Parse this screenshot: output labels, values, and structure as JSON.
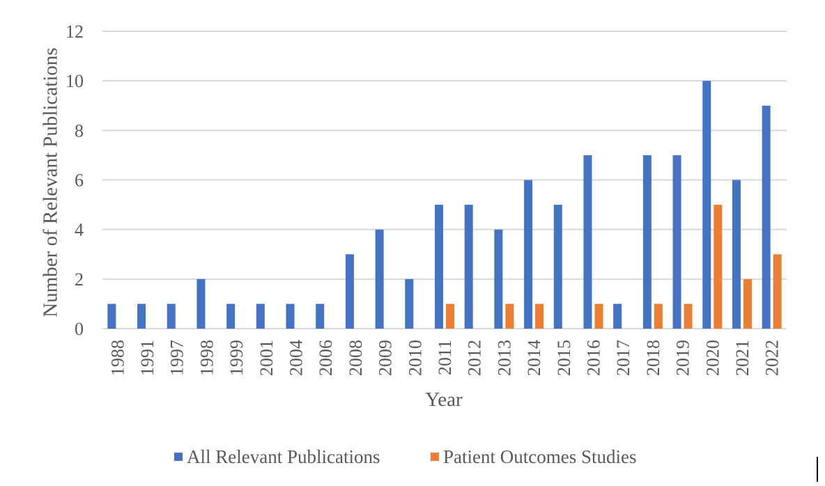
{
  "chart_data": {
    "type": "bar",
    "title": "",
    "xlabel": "Year",
    "ylabel": "Number of Relevant Publications",
    "ylim": [
      0,
      12
    ],
    "yticks": [
      0,
      2,
      4,
      6,
      8,
      10,
      12
    ],
    "grid": true,
    "legend_position": "bottom",
    "categories": [
      "1988",
      "1991",
      "1997",
      "1998",
      "1999",
      "2001",
      "2004",
      "2006",
      "2008",
      "2009",
      "2010",
      "2011",
      "2012",
      "2013",
      "2014",
      "2015",
      "2016",
      "2017",
      "2018",
      "2019",
      "2020",
      "2021",
      "2022"
    ],
    "series": [
      {
        "name": "All Relevant Publications",
        "color": "#4472C4",
        "values": [
          1,
          1,
          1,
          2,
          1,
          1,
          1,
          1,
          3,
          4,
          2,
          5,
          5,
          4,
          6,
          5,
          7,
          1,
          7,
          7,
          10,
          6,
          9
        ]
      },
      {
        "name": "Patient Outcomes Studies",
        "color": "#ED7D31",
        "values": [
          0,
          0,
          0,
          0,
          0,
          0,
          0,
          0,
          0,
          0,
          0,
          1,
          0,
          1,
          1,
          0,
          1,
          0,
          1,
          1,
          5,
          2,
          3
        ]
      }
    ]
  }
}
